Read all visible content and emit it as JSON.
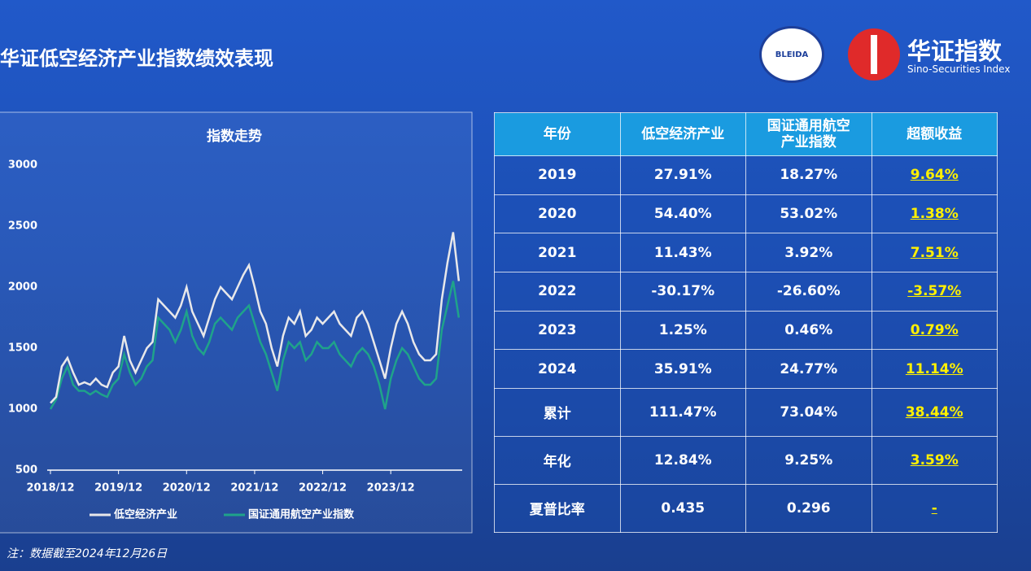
{
  "header": {
    "title": "华证低空经济产业指数绩效表现",
    "logo_badge": "BLEIDA",
    "logo_name": "华证指数",
    "logo_subtitle": "Sino-Securities Index"
  },
  "chart_data": {
    "type": "line",
    "title": "指数走势",
    "x": [
      "2018/12",
      "2019/01",
      "2019/02",
      "2019/03",
      "2019/04",
      "2019/05",
      "2019/06",
      "2019/07",
      "2019/08",
      "2019/09",
      "2019/10",
      "2019/11",
      "2019/12",
      "2020/01",
      "2020/02",
      "2020/03",
      "2020/04",
      "2020/05",
      "2020/06",
      "2020/07",
      "2020/08",
      "2020/09",
      "2020/10",
      "2020/11",
      "2020/12",
      "2021/01",
      "2021/02",
      "2021/03",
      "2021/04",
      "2021/05",
      "2021/06",
      "2021/07",
      "2021/08",
      "2021/09",
      "2021/10",
      "2021/11",
      "2021/12",
      "2022/01",
      "2022/02",
      "2022/03",
      "2022/04",
      "2022/05",
      "2022/06",
      "2022/07",
      "2022/08",
      "2022/09",
      "2022/10",
      "2022/11",
      "2022/12",
      "2023/01",
      "2023/02",
      "2023/03",
      "2023/04",
      "2023/05",
      "2023/06",
      "2023/07",
      "2023/08",
      "2023/09",
      "2023/10",
      "2023/11",
      "2023/12",
      "2024/01",
      "2024/02",
      "2024/03",
      "2024/04",
      "2024/05",
      "2024/06",
      "2024/07",
      "2024/08",
      "2024/09",
      "2024/10",
      "2024/11",
      "2024/12"
    ],
    "xticks": [
      "2018/12",
      "2019/12",
      "2020/12",
      "2021/12",
      "2022/12",
      "2023/12"
    ],
    "ylim": [
      500,
      3000
    ],
    "yticks": [
      500,
      1000,
      1500,
      2000,
      2500,
      3000
    ],
    "series": [
      {
        "name": "低空经济产业",
        "color": "#e8e8ea",
        "values": [
          1050,
          1100,
          1350,
          1420,
          1300,
          1200,
          1220,
          1200,
          1250,
          1200,
          1180,
          1300,
          1350,
          1600,
          1400,
          1300,
          1400,
          1500,
          1550,
          1900,
          1850,
          1800,
          1750,
          1850,
          2000,
          1800,
          1700,
          1600,
          1750,
          1900,
          2000,
          1950,
          1900,
          2000,
          2100,
          2180,
          2000,
          1800,
          1700,
          1500,
          1350,
          1600,
          1750,
          1700,
          1800,
          1600,
          1650,
          1750,
          1700,
          1750,
          1800,
          1700,
          1650,
          1600,
          1750,
          1800,
          1700,
          1550,
          1400,
          1250,
          1500,
          1700,
          1800,
          1700,
          1550,
          1450,
          1400,
          1400,
          1450,
          1900,
          2200,
          2450,
          2050
        ]
      },
      {
        "name": "国证通用航空产业指数",
        "color": "#1fa38a",
        "values": [
          1000,
          1080,
          1250,
          1350,
          1200,
          1150,
          1150,
          1120,
          1150,
          1120,
          1100,
          1200,
          1250,
          1450,
          1300,
          1200,
          1250,
          1350,
          1400,
          1750,
          1700,
          1650,
          1550,
          1650,
          1800,
          1600,
          1500,
          1450,
          1550,
          1700,
          1750,
          1700,
          1650,
          1750,
          1800,
          1850,
          1700,
          1550,
          1450,
          1300,
          1150,
          1400,
          1550,
          1500,
          1550,
          1400,
          1450,
          1550,
          1500,
          1500,
          1550,
          1450,
          1400,
          1350,
          1450,
          1500,
          1450,
          1350,
          1200,
          1000,
          1250,
          1400,
          1500,
          1450,
          1350,
          1250,
          1200,
          1200,
          1250,
          1650,
          1850,
          2050,
          1750
        ]
      }
    ]
  },
  "table": {
    "header": [
      "年份",
      "低空经济产业",
      "国证通用航空产业指数",
      "超额收益"
    ],
    "rows": [
      [
        "2019",
        "27.91%",
        "18.27%",
        "9.64%"
      ],
      [
        "2020",
        "54.40%",
        "53.02%",
        "1.38%"
      ],
      [
        "2021",
        "11.43%",
        "3.92%",
        "7.51%"
      ],
      [
        "2022",
        "-30.17%",
        "-26.60%",
        "-3.57%"
      ],
      [
        "2023",
        "1.25%",
        "0.46%",
        "0.79%"
      ],
      [
        "2024",
        "35.91%",
        "24.77%",
        "11.14%"
      ],
      [
        "累计",
        "111.47%",
        "73.04%",
        "38.44%"
      ],
      [
        "年化",
        "12.84%",
        "9.25%",
        "3.59%"
      ],
      [
        "夏普比率",
        "0.435",
        "0.296",
        "-"
      ]
    ]
  },
  "note": "注：数据截至2024年12月26日"
}
